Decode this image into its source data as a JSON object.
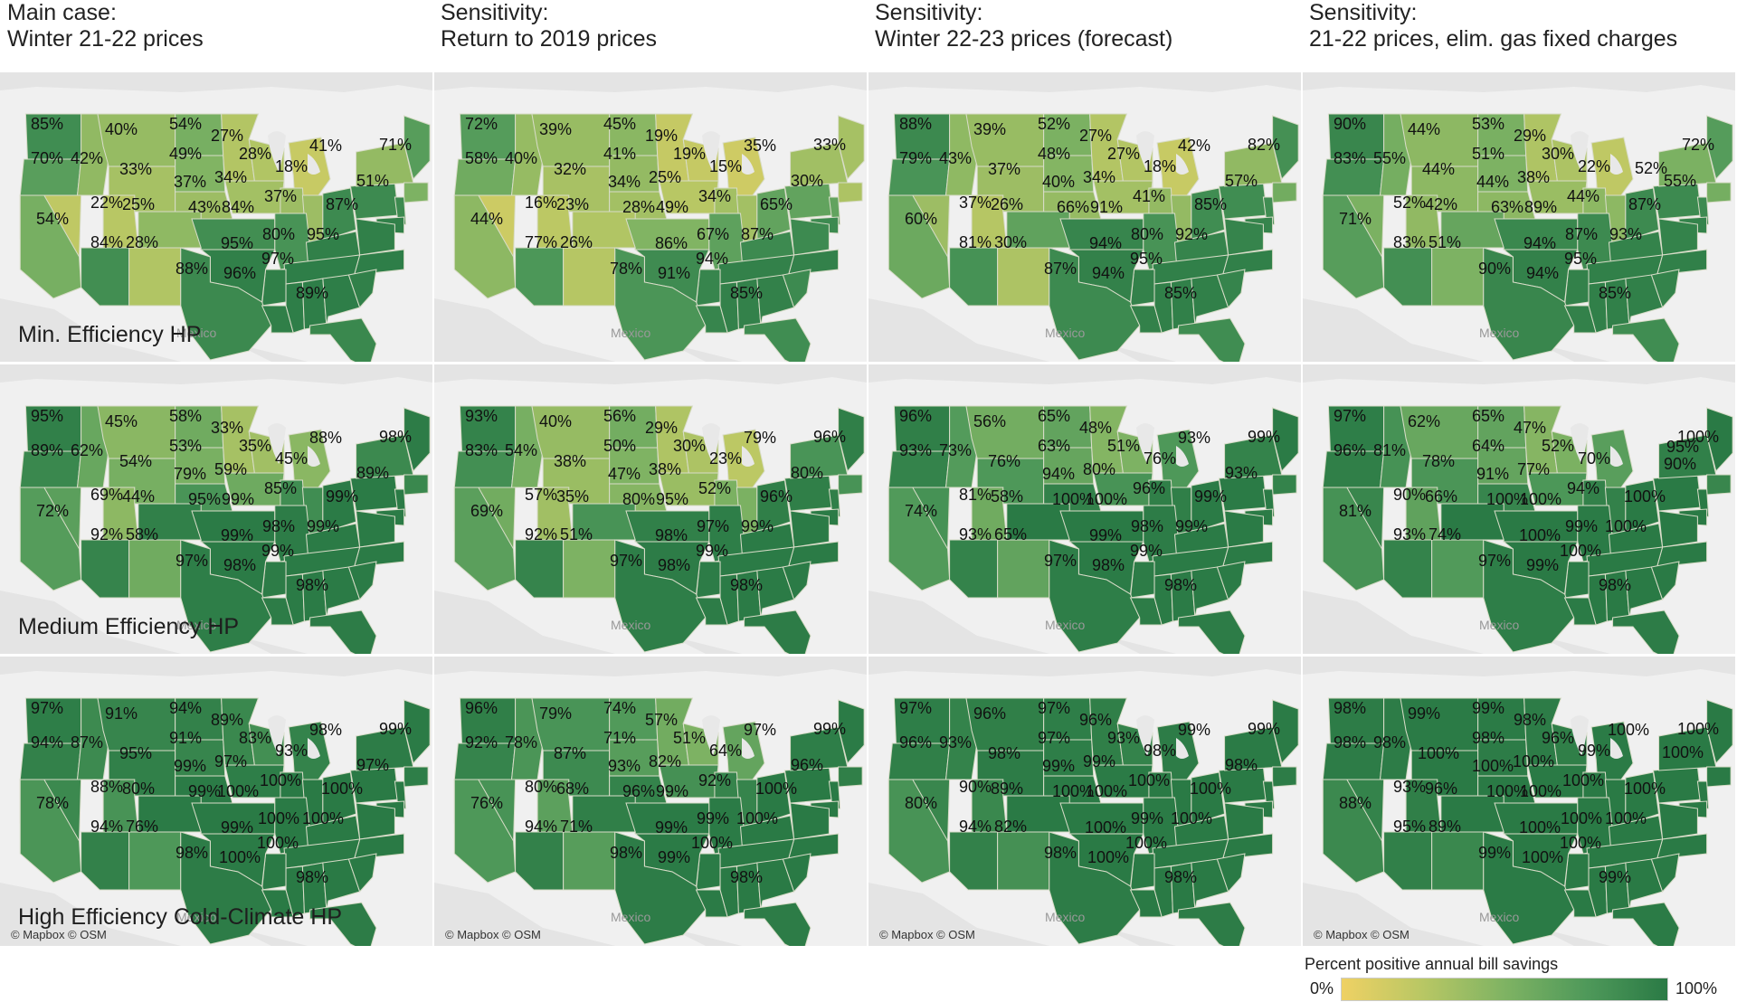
{
  "columns": [
    {
      "line1": "Main case:",
      "line2": "Winter 21-22 prices"
    },
    {
      "line1": "Sensitivity:",
      "line2": "Return to 2019 prices"
    },
    {
      "line1": "Sensitivity:",
      "line2": "Winter 22-23 prices (forecast)"
    },
    {
      "line1": "Sensitivity:",
      "line2": "21-22 prices, elim. gas fixed charges"
    }
  ],
  "rows": [
    {
      "label": "Min. Efficiency HP"
    },
    {
      "label": "Medium Efficiency HP"
    },
    {
      "label": "High Efficiency Cold-Climate HP"
    }
  ],
  "map_labels": {
    "country": "Mexico",
    "attribution": "© Mapbox © OSM"
  },
  "legend": {
    "title": "Percent positive annual bill savings",
    "min": "0%",
    "max": "100%",
    "colors": [
      "#efd164",
      "#b8c764",
      "#7fb363",
      "#4f995a",
      "#2a7a45"
    ]
  },
  "regions": [
    "WA",
    "OR",
    "MT",
    "ND",
    "MN",
    "WI",
    "MI",
    "ME",
    "NY",
    "MA",
    "NJ",
    "MD",
    "OH",
    "IN",
    "IA",
    "NE",
    "SD",
    "WY",
    "ID",
    "CA",
    "NV",
    "UT",
    "CO",
    "KS",
    "MO",
    "IL",
    "PA",
    "VA",
    "NC",
    "KY",
    "TN",
    "AR",
    "OK",
    "AZ",
    "NM",
    "TX",
    "LA",
    "MS",
    "AL",
    "GA",
    "SC",
    "FL"
  ],
  "panels": [
    [
      {
        "WA": "85%",
        "OR": "70%",
        "ID": "42%",
        "MT": "40%",
        "ND": "54%",
        "SD": "49%",
        "MN": "27%",
        "WI": "28%",
        "MI": "18%",
        "ME": "71%",
        "NY": "41%",
        "MA": "51%",
        "NE": "37%",
        "IA": "34%",
        "WY": "33%",
        "IL": "37%",
        "PA": "87%",
        "NV": "22%",
        "UT": "25%",
        "CO": "43%",
        "KS": "84%",
        "CA": "54%",
        "AZ": "84%",
        "NM": "28%",
        "OK": "95%",
        "MO": "80%",
        "KY": "95%",
        "TN": "97%",
        "TX": "88%",
        "AR": "96%",
        "FL": "89%"
      },
      {
        "WA": "72%",
        "OR": "58%",
        "ID": "40%",
        "MT": "39%",
        "ND": "45%",
        "SD": "41%",
        "MN": "19%",
        "WI": "19%",
        "MI": "15%",
        "ME": "33%",
        "NY": "35%",
        "MA": "30%",
        "NE": "34%",
        "IA": "25%",
        "WY": "32%",
        "IL": "34%",
        "PA": "65%",
        "NV": "16%",
        "UT": "23%",
        "CO": "28%",
        "KS": "49%",
        "CA": "44%",
        "AZ": "77%",
        "NM": "26%",
        "OK": "86%",
        "MO": "67%",
        "KY": "87%",
        "TN": "94%",
        "TX": "78%",
        "AR": "91%",
        "FL": "85%"
      },
      {
        "WA": "88%",
        "OR": "79%",
        "ID": "43%",
        "MT": "39%",
        "ND": "52%",
        "SD": "48%",
        "MN": "27%",
        "WI": "27%",
        "MI": "18%",
        "ME": "82%",
        "NY": "42%",
        "MA": "57%",
        "NE": "40%",
        "IA": "34%",
        "WY": "37%",
        "IL": "41%",
        "PA": "85%",
        "NV": "37%",
        "UT": "26%",
        "CO": "66%",
        "KS": "91%",
        "CA": "60%",
        "AZ": "81%",
        "NM": "30%",
        "OK": "94%",
        "MO": "80%",
        "KY": "92%",
        "TN": "95%",
        "TX": "87%",
        "AR": "94%",
        "FL": "85%"
      },
      {
        "WA": "90%",
        "OR": "83%",
        "ID": "55%",
        "MT": "44%",
        "ND": "53%",
        "SD": "51%",
        "MN": "29%",
        "WI": "30%",
        "MI": "22%",
        "ME": "72%",
        "NY": "52%",
        "MA": "55%",
        "NE": "44%",
        "IA": "38%",
        "WY": "44%",
        "IL": "44%",
        "PA": "87%",
        "NV": "52%",
        "UT": "42%",
        "CO": "63%",
        "KS": "89%",
        "CA": "71%",
        "AZ": "83%",
        "NM": "51%",
        "OK": "94%",
        "MO": "87%",
        "KY": "93%",
        "TN": "95%",
        "TX": "90%",
        "AR": "94%",
        "FL": "85%"
      }
    ],
    [
      {
        "WA": "95%",
        "OR": "89%",
        "ID": "62%",
        "MT": "45%",
        "ND": "58%",
        "SD": "53%",
        "MN": "33%",
        "WI": "35%",
        "MI": "45%",
        "ME": "98%",
        "NY": "88%",
        "MA": "89%",
        "NE": "79%",
        "IA": "59%",
        "WY": "54%",
        "IL": "85%",
        "PA": "99%",
        "NV": "69%",
        "UT": "44%",
        "CO": "95%",
        "KS": "99%",
        "CA": "72%",
        "AZ": "92%",
        "NM": "58%",
        "OK": "99%",
        "MO": "98%",
        "KY": "99%",
        "TN": "99%",
        "TX": "97%",
        "AR": "98%",
        "FL": "98%"
      },
      {
        "WA": "93%",
        "OR": "83%",
        "ID": "54%",
        "MT": "40%",
        "ND": "56%",
        "SD": "50%",
        "MN": "29%",
        "WI": "30%",
        "MI": "23%",
        "ME": "96%",
        "NY": "79%",
        "MA": "80%",
        "NE": "47%",
        "IA": "38%",
        "WY": "38%",
        "IL": "52%",
        "PA": "96%",
        "NV": "57%",
        "UT": "35%",
        "CO": "80%",
        "KS": "95%",
        "CA": "69%",
        "AZ": "92%",
        "NM": "51%",
        "OK": "98%",
        "MO": "97%",
        "KY": "99%",
        "TN": "99%",
        "TX": "97%",
        "AR": "98%",
        "FL": "98%"
      },
      {
        "WA": "96%",
        "OR": "93%",
        "ID": "73%",
        "MT": "56%",
        "ND": "65%",
        "SD": "63%",
        "MN": "48%",
        "WI": "51%",
        "MI": "76%",
        "ME": "99%",
        "NY": "93%",
        "MA": "93%",
        "NE": "94%",
        "IA": "80%",
        "WY": "76%",
        "IL": "96%",
        "PA": "99%",
        "NV": "81%",
        "UT": "58%",
        "CO": "100%",
        "KS": "100%",
        "CA": "74%",
        "AZ": "93%",
        "NM": "65%",
        "OK": "99%",
        "MO": "98%",
        "KY": "99%",
        "TN": "99%",
        "TX": "97%",
        "AR": "98%",
        "FL": "98%"
      },
      {
        "WA": "97%",
        "OR": "96%",
        "ID": "81%",
        "MT": "62%",
        "ND": "65%",
        "SD": "64%",
        "MN": "47%",
        "WI": "52%",
        "MI": "70%",
        "ME": "100%",
        "NY": "95%",
        "MA": "90%",
        "NE": "91%",
        "IA": "77%",
        "WY": "78%",
        "IL": "94%",
        "PA": "100%",
        "NV": "90%",
        "UT": "66%",
        "CO": "100%",
        "KS": "100%",
        "CA": "81%",
        "AZ": "93%",
        "NM": "74%",
        "OK": "100%",
        "MO": "99%",
        "KY": "100%",
        "TN": "100%",
        "TX": "97%",
        "AR": "99%",
        "FL": "98%"
      }
    ],
    [
      {
        "WA": "97%",
        "OR": "94%",
        "ID": "87%",
        "MT": "91%",
        "ND": "94%",
        "SD": "91%",
        "MN": "89%",
        "WI": "83%",
        "MI": "93%",
        "ME": "99%",
        "NY": "98%",
        "MA": "97%",
        "NE": "99%",
        "IA": "97%",
        "WY": "95%",
        "IL": "100%",
        "PA": "100%",
        "NV": "88%",
        "UT": "80%",
        "CO": "99%",
        "KS": "100%",
        "CA": "78%",
        "AZ": "94%",
        "NM": "76%",
        "OK": "99%",
        "MO": "100%",
        "KY": "100%",
        "TN": "100%",
        "TX": "98%",
        "AR": "100%",
        "FL": "98%"
      },
      {
        "WA": "96%",
        "OR": "92%",
        "ID": "78%",
        "MT": "79%",
        "ND": "74%",
        "SD": "71%",
        "MN": "57%",
        "WI": "51%",
        "MI": "64%",
        "ME": "99%",
        "NY": "97%",
        "MA": "96%",
        "NE": "93%",
        "IA": "82%",
        "WY": "87%",
        "IL": "92%",
        "PA": "100%",
        "NV": "80%",
        "UT": "68%",
        "CO": "96%",
        "KS": "99%",
        "CA": "76%",
        "AZ": "94%",
        "NM": "71%",
        "OK": "99%",
        "MO": "99%",
        "KY": "100%",
        "TN": "100%",
        "TX": "98%",
        "AR": "99%",
        "FL": "98%"
      },
      {
        "WA": "97%",
        "OR": "96%",
        "ID": "93%",
        "MT": "96%",
        "ND": "97%",
        "SD": "97%",
        "MN": "96%",
        "WI": "93%",
        "MI": "98%",
        "ME": "99%",
        "NY": "99%",
        "MA": "98%",
        "NE": "99%",
        "IA": "99%",
        "WY": "98%",
        "IL": "100%",
        "PA": "100%",
        "NV": "90%",
        "UT": "89%",
        "CO": "100%",
        "KS": "100%",
        "CA": "80%",
        "AZ": "94%",
        "NM": "82%",
        "OK": "100%",
        "MO": "99%",
        "KY": "100%",
        "TN": "100%",
        "TX": "98%",
        "AR": "100%",
        "FL": "98%"
      },
      {
        "WA": "98%",
        "OR": "98%",
        "ID": "98%",
        "MT": "99%",
        "ND": "99%",
        "SD": "98%",
        "MN": "98%",
        "WI": "96%",
        "MI": "99%",
        "ME": "100%",
        "NY": "100%",
        "MA": "100%",
        "NE": "100%",
        "IA": "100%",
        "WY": "100%",
        "IL": "100%",
        "PA": "100%",
        "NV": "93%",
        "UT": "96%",
        "CO": "100%",
        "KS": "100%",
        "CA": "88%",
        "AZ": "95%",
        "NM": "89%",
        "OK": "100%",
        "MO": "100%",
        "KY": "100%",
        "TN": "100%",
        "TX": "99%",
        "AR": "100%",
        "FL": "99%"
      }
    ]
  ]
}
